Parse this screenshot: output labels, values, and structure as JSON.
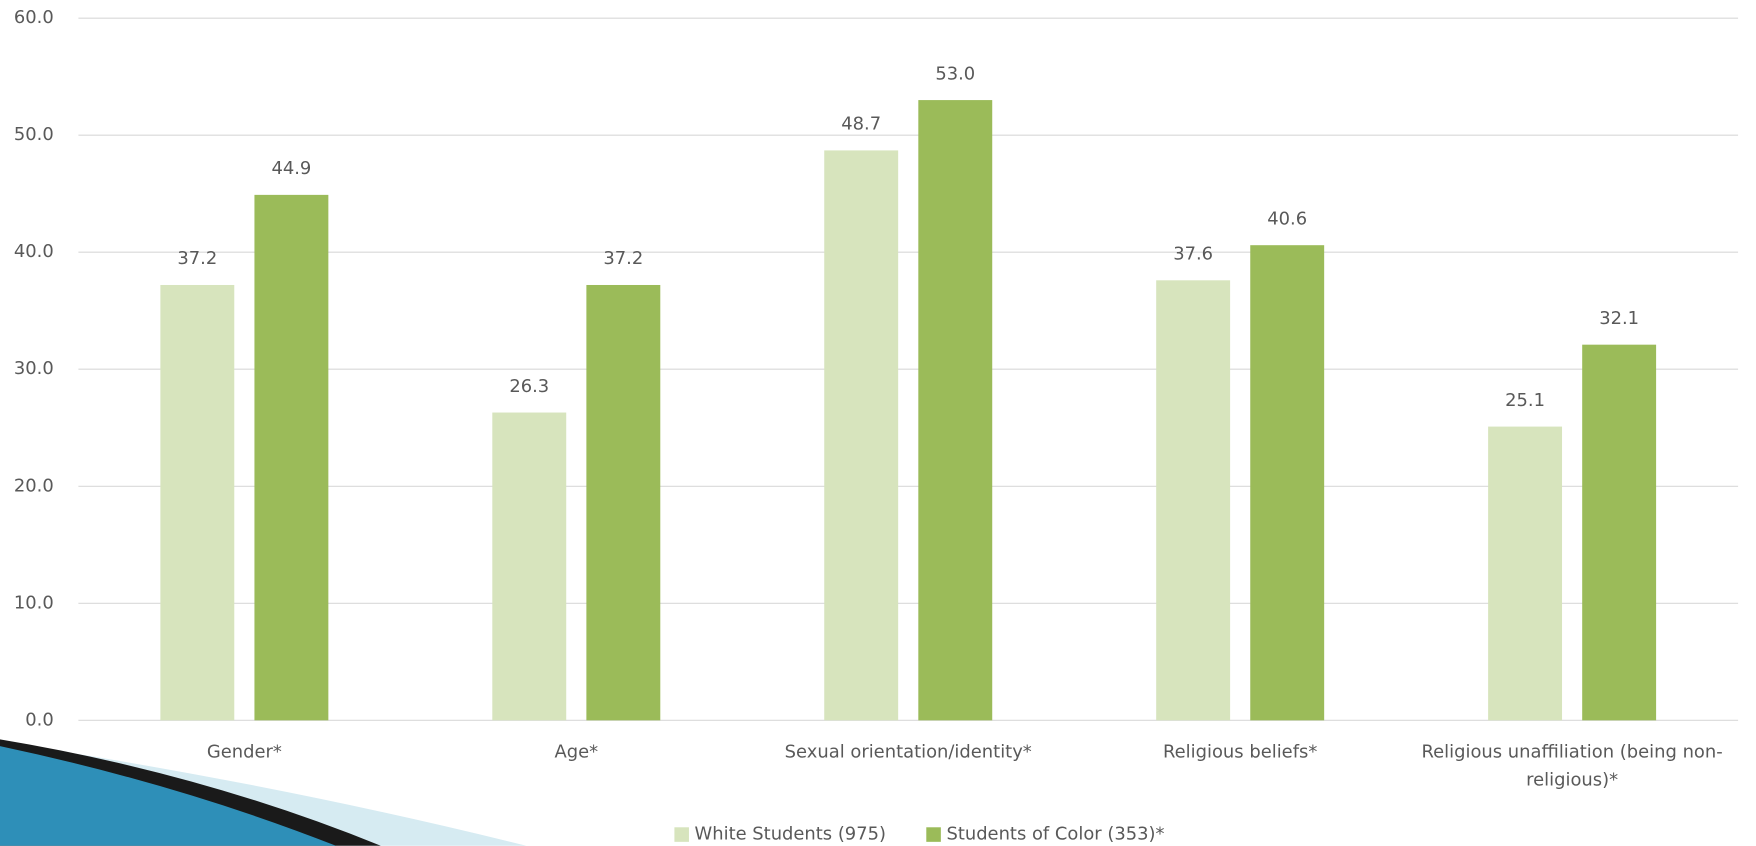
{
  "chart_data": {
    "type": "bar",
    "categories": [
      "Gender*",
      "Age*",
      "Sexual orientation/identity*",
      "Religious beliefs*",
      "Religious unaffiliation (being non-religious)*"
    ],
    "series": [
      {
        "name": "White Students (975)",
        "color": "#d7e4bd",
        "values": [
          37.2,
          26.3,
          48.7,
          37.6,
          25.1
        ],
        "value_labels": [
          "37.2",
          "26.3",
          "48.7",
          "37.6",
          "25.1"
        ]
      },
      {
        "name": "Students of Color (353)*",
        "color": "#9bbb59",
        "values": [
          44.9,
          37.2,
          53.0,
          40.6,
          32.1
        ],
        "value_labels": [
          "44.9",
          "37.2",
          "53.0",
          "40.6",
          "32.1"
        ]
      }
    ],
    "ylim": [
      0,
      60
    ],
    "yticks": [
      {
        "value": 0,
        "label": "0.0"
      },
      {
        "value": 10,
        "label": "10.0"
      },
      {
        "value": 20,
        "label": "20.0"
      },
      {
        "value": 30,
        "label": "30.0"
      },
      {
        "value": 40,
        "label": "40.0"
      },
      {
        "value": 50,
        "label": "50.0"
      },
      {
        "value": 60,
        "label": "60.0"
      }
    ],
    "grid": true,
    "legend": "bottom"
  }
}
